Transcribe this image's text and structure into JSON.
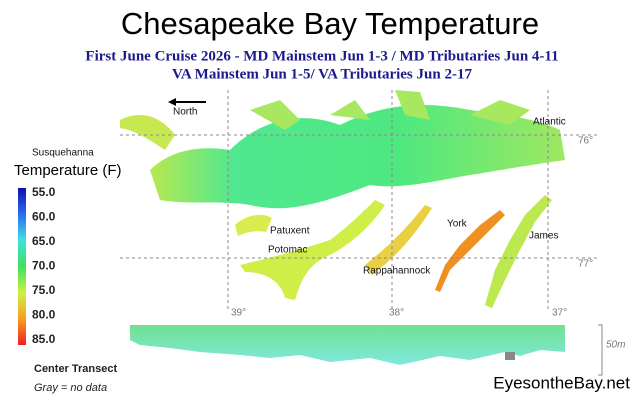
{
  "header": {
    "title": "Chesapeake Bay Temperature",
    "subtitle_lines": [
      "First June Cruise 2026 - MD Mainstem Jun 1-3 / MD Tributaries Jun 4-11",
      "VA Mainstem Jun 1-5/  VA Tributaries Jun 2-17"
    ]
  },
  "map": {
    "north": "North",
    "places": [
      "Susquehanna",
      "Atlantic",
      "Patuxent",
      "Potomac",
      "York",
      "James",
      "Rappahannock"
    ],
    "latitudes": [
      "76°",
      "77°"
    ],
    "longitudes": [
      "39°",
      "38°",
      "37°"
    ]
  },
  "legend": {
    "title": "Temperature (F)",
    "ticks": [
      "55.0",
      "60.0",
      "65.0",
      "70.0",
      "75.0",
      "80.0",
      "85.0"
    ]
  },
  "transect": {
    "title": "Center Transect",
    "note": "Gray = no data",
    "depth": "50m"
  },
  "footer": {
    "site": "EyesontheBay.net"
  }
}
